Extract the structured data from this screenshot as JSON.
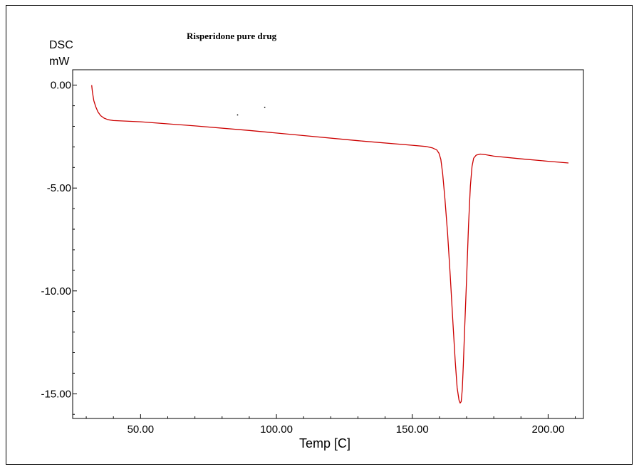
{
  "chart_data": {
    "type": "line",
    "title": "Risperidone pure drug",
    "ylabel_line1": "DSC",
    "ylabel_line2": "mW",
    "xlabel": "Temp [C]",
    "xlim": [
      25,
      213
    ],
    "ylim": [
      -16.2,
      0.75
    ],
    "x_ticks": [
      50,
      100,
      150,
      200
    ],
    "x_tick_labels": [
      "50.00",
      "100.00",
      "150.00",
      "200.00"
    ],
    "y_ticks": [
      0,
      -5,
      -10,
      -15
    ],
    "y_tick_labels": [
      "0.00",
      "-5.00",
      "-10.00",
      "-15.00"
    ],
    "grid": false,
    "series": [
      {
        "color": "#cc0000",
        "x": [
          32.0,
          32.3,
          32.8,
          33.5,
          34.3,
          35.3,
          36.5,
          38.0,
          40.0,
          50.0,
          70.0,
          90.0,
          110.0,
          130.0,
          150.0,
          155.0,
          157.5,
          159.0,
          159.8,
          160.5,
          161.2,
          162.0,
          163.0,
          164.0,
          165.0,
          165.8,
          166.5,
          167.2,
          167.6,
          168.0,
          168.4,
          168.8,
          169.3,
          170.0,
          170.7,
          171.4,
          172.0,
          172.6,
          173.5,
          175.0,
          177.0,
          180.0,
          190.0,
          200.0,
          207.5
        ],
        "y": [
          0.0,
          -0.35,
          -0.75,
          -1.05,
          -1.3,
          -1.48,
          -1.6,
          -1.68,
          -1.72,
          -1.78,
          -1.98,
          -2.2,
          -2.45,
          -2.7,
          -2.92,
          -2.98,
          -3.05,
          -3.15,
          -3.3,
          -3.6,
          -4.3,
          -5.5,
          -7.2,
          -9.3,
          -11.6,
          -13.4,
          -14.7,
          -15.3,
          -15.45,
          -15.38,
          -14.8,
          -13.6,
          -11.8,
          -9.4,
          -6.8,
          -4.9,
          -3.95,
          -3.55,
          -3.4,
          -3.35,
          -3.38,
          -3.45,
          -3.58,
          -3.7,
          -3.78
        ]
      }
    ],
    "annotations": [
      {
        "x": 85.5,
        "y": -1.42
      },
      {
        "x": 95.5,
        "y": -1.05
      }
    ]
  }
}
